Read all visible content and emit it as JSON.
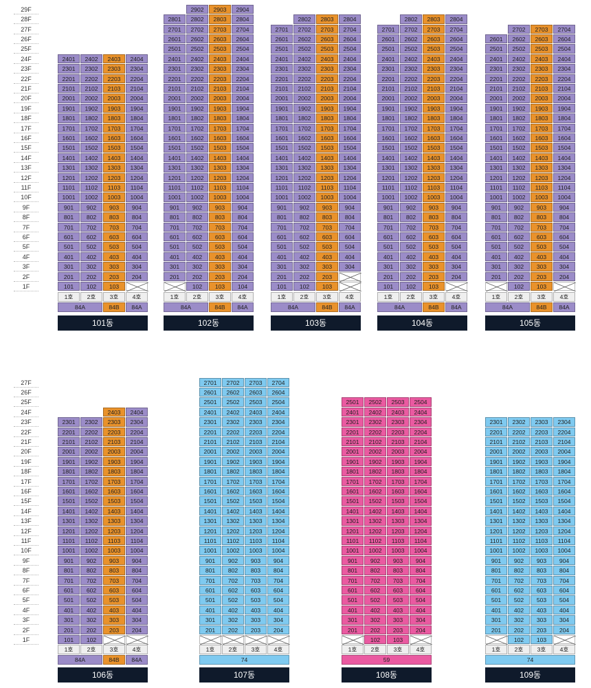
{
  "floor_labels_top": [
    "29F",
    "28F",
    "27F",
    "26F",
    "25F",
    "24F",
    "23F",
    "22F",
    "21F",
    "20F",
    "19F",
    "18F",
    "17F",
    "16F",
    "15F",
    "14F",
    "13F",
    "12F",
    "11F",
    "10F",
    "9F",
    "8F",
    "7F",
    "6F",
    "5F",
    "4F",
    "3F",
    "2F",
    "1F"
  ],
  "floor_labels_bottom": [
    "27F",
    "26F",
    "25F",
    "24F",
    "23F",
    "22F",
    "21F",
    "20F",
    "19F",
    "18F",
    "17F",
    "16F",
    "15F",
    "14F",
    "13F",
    "12F",
    "11F",
    "10F",
    "9F",
    "8F",
    "7F",
    "6F",
    "5F",
    "4F",
    "3F",
    "2F",
    "1F"
  ],
  "ho_labels": [
    "1호",
    "2호",
    "3호",
    "4호"
  ],
  "colors": {
    "purple": "#9b8cc8",
    "orange": "#e9922b",
    "blue": "#7fcaf0",
    "pink": "#ea5aa1",
    "dark": "#0f1a2b"
  },
  "buildings": [
    {
      "name": "101동",
      "row": "top",
      "color": [
        "purple",
        "purple",
        "orange",
        "purple"
      ],
      "max": [
        24,
        24,
        24,
        24
      ],
      "empty_first": [
        false,
        false,
        false,
        true
      ],
      "types": [
        {
          "label": "84A",
          "span": 2,
          "color": "purple"
        },
        {
          "label": "84B",
          "span": 1,
          "color": "orange"
        },
        {
          "label": "84A",
          "span": 1,
          "color": "purple"
        }
      ]
    },
    {
      "name": "102동",
      "row": "top",
      "color": [
        "purple",
        "purple",
        "orange",
        "purple"
      ],
      "max": [
        28,
        29,
        29,
        29
      ],
      "empty_first": [
        true,
        false,
        false,
        false
      ],
      "types": [
        {
          "label": "84A",
          "span": 2,
          "color": "purple"
        },
        {
          "label": "84B",
          "span": 1,
          "color": "orange"
        },
        {
          "label": "84A",
          "span": 1,
          "color": "purple"
        }
      ]
    },
    {
      "name": "103동",
      "row": "top",
      "color": [
        "purple",
        "purple",
        "orange",
        "purple"
      ],
      "max": [
        27,
        28,
        28,
        28
      ],
      "empty_first": [
        false,
        false,
        false,
        true
      ],
      "empty_second": [
        false,
        false,
        false,
        true
      ],
      "types": [
        {
          "label": "84A",
          "span": 2,
          "color": "purple"
        },
        {
          "label": "84B",
          "span": 1,
          "color": "orange"
        },
        {
          "label": "84A",
          "span": 1,
          "color": "purple"
        }
      ]
    },
    {
      "name": "104동",
      "row": "top",
      "color": [
        "purple",
        "purple",
        "orange",
        "purple"
      ],
      "max": [
        27,
        28,
        28,
        28
      ],
      "empty_first": [
        false,
        false,
        false,
        true
      ],
      "types": [
        {
          "label": "84A",
          "span": 2,
          "color": "purple"
        },
        {
          "label": "84B",
          "span": 1,
          "color": "orange"
        },
        {
          "label": "84A",
          "span": 1,
          "color": "purple"
        }
      ]
    },
    {
      "name": "105동",
      "row": "top",
      "color": [
        "purple",
        "purple",
        "orange",
        "purple"
      ],
      "max": [
        26,
        27,
        27,
        27
      ],
      "empty_first": [
        true,
        false,
        false,
        true
      ],
      "types": [
        {
          "label": "84A",
          "span": 2,
          "color": "purple"
        },
        {
          "label": "84B",
          "span": 1,
          "color": "orange"
        },
        {
          "label": "84A",
          "span": 1,
          "color": "purple"
        }
      ]
    },
    {
      "name": "106동",
      "row": "bottom",
      "color": [
        "purple",
        "purple",
        "orange",
        "purple"
      ],
      "max": [
        23,
        23,
        24,
        24
      ],
      "empty_first": [
        false,
        false,
        true,
        true
      ],
      "types": [
        {
          "label": "84A",
          "span": 2,
          "color": "purple"
        },
        {
          "label": "84B",
          "span": 1,
          "color": "orange"
        },
        {
          "label": "84A",
          "span": 1,
          "color": "purple"
        }
      ]
    },
    {
      "name": "107동",
      "row": "bottom",
      "color": [
        "blue",
        "blue",
        "blue",
        "blue"
      ],
      "max": [
        27,
        27,
        27,
        27
      ],
      "empty_first": [
        true,
        true,
        true,
        true
      ],
      "types": [
        {
          "label": "74",
          "span": 4,
          "color": "blue"
        }
      ]
    },
    {
      "name": "108동",
      "row": "bottom",
      "color": [
        "pink",
        "pink",
        "pink",
        "pink"
      ],
      "max": [
        25,
        25,
        25,
        25
      ],
      "empty_first": [
        true,
        false,
        false,
        true
      ],
      "types": [
        {
          "label": "59",
          "span": 4,
          "color": "pink"
        }
      ]
    },
    {
      "name": "109동",
      "row": "bottom",
      "color": [
        "blue",
        "blue",
        "blue",
        "blue"
      ],
      "max": [
        23,
        23,
        23,
        23
      ],
      "empty_first": [
        true,
        false,
        false,
        true
      ],
      "types": [
        {
          "label": "74",
          "span": 4,
          "color": "blue"
        }
      ]
    }
  ]
}
